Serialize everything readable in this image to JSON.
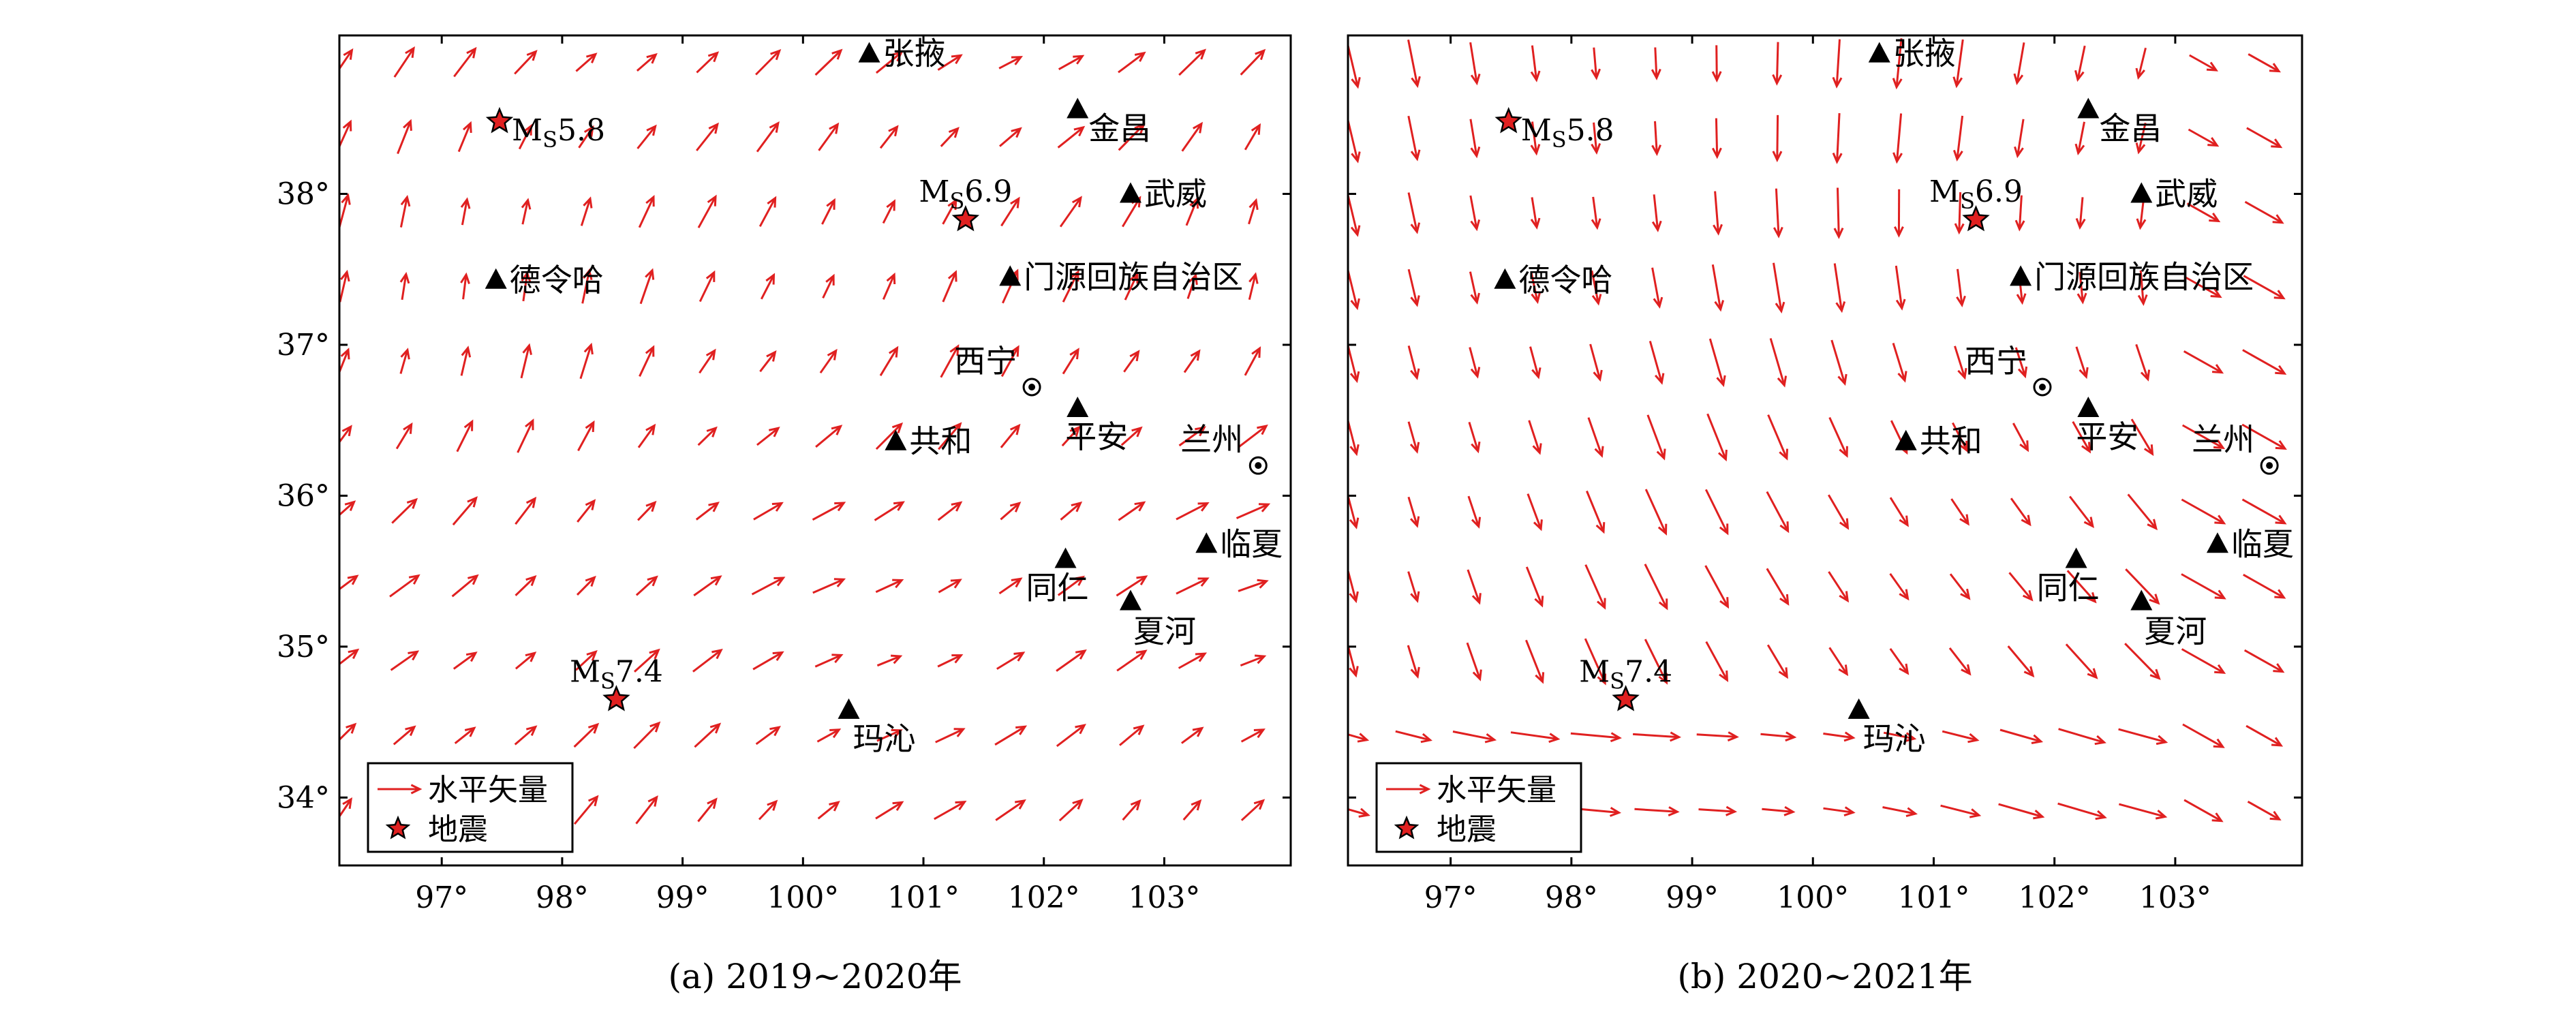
{
  "colors": {
    "vector": "#e02020",
    "star_fill": "#e02020",
    "star_stroke": "#000000",
    "station": "#000000",
    "frame": "#000000"
  },
  "panels": [
    {
      "id": "a",
      "caption": "(a) 2019~2020年",
      "flow": "northeast",
      "x_ticks": [
        {
          "lon": 97,
          "label": "97°"
        },
        {
          "lon": 98,
          "label": "98°"
        },
        {
          "lon": 99,
          "label": "99°"
        },
        {
          "lon": 100,
          "label": "100°"
        },
        {
          "lon": 101,
          "label": "101°"
        },
        {
          "lon": 102,
          "label": "102°"
        },
        {
          "lon": 103,
          "label": "103°"
        }
      ],
      "y_ticks": [
        {
          "lat": 34,
          "label": "34°"
        },
        {
          "lat": 35,
          "label": "35°"
        },
        {
          "lat": 36,
          "label": "36°"
        },
        {
          "lat": 37,
          "label": "37°"
        },
        {
          "lat": 38,
          "label": "38°"
        }
      ]
    },
    {
      "id": "b",
      "caption": "(b) 2020~2021年",
      "flow": "south",
      "x_ticks": [
        {
          "lon": 97,
          "label": "97°"
        },
        {
          "lon": 98,
          "label": "98°"
        },
        {
          "lon": 99,
          "label": "99°"
        },
        {
          "lon": 100,
          "label": "100°"
        },
        {
          "lon": 101,
          "label": "101°"
        },
        {
          "lon": 102,
          "label": "102°"
        },
        {
          "lon": 103,
          "label": "103°"
        }
      ],
      "y_ticks": [
        {
          "lat": 34,
          "label": ""
        },
        {
          "lat": 35,
          "label": ""
        },
        {
          "lat": 36,
          "label": ""
        },
        {
          "lat": 37,
          "label": ""
        },
        {
          "lat": 38,
          "label": ""
        }
      ]
    }
  ],
  "map_extent": {
    "lon": [
      96.15,
      104.05
    ],
    "lat": [
      33.55,
      39.05
    ]
  },
  "stations": [
    {
      "name": "张掖",
      "lon": 100.55,
      "lat": 38.93
    },
    {
      "name": "金昌",
      "lon": 102.28,
      "lat": 38.56
    },
    {
      "name": "武威",
      "lon": 102.72,
      "lat": 38.0
    },
    {
      "name": "德令哈",
      "lon": 97.45,
      "lat": 37.43
    },
    {
      "name": "门源回族自治区",
      "lon": 101.72,
      "lat": 37.45
    },
    {
      "name": "平安",
      "lon": 102.28,
      "lat": 36.58
    },
    {
      "name": "共和",
      "lon": 100.77,
      "lat": 36.36
    },
    {
      "name": "临夏",
      "lon": 103.35,
      "lat": 35.68
    },
    {
      "name": "同仁",
      "lon": 102.18,
      "lat": 35.58
    },
    {
      "name": "夏河",
      "lon": 102.72,
      "lat": 35.3
    },
    {
      "name": "玛沁",
      "lon": 100.38,
      "lat": 34.58
    }
  ],
  "cities": [
    {
      "name": "西宁",
      "lon": 101.9,
      "lat": 36.72
    },
    {
      "name": "兰州",
      "lon": 103.78,
      "lat": 36.2
    }
  ],
  "earthquakes": [
    {
      "label_prefix": "M",
      "label_sub": "S",
      "magnitude": "5.8",
      "lon": 97.48,
      "lat": 38.48
    },
    {
      "label_prefix": "M",
      "label_sub": "S",
      "magnitude": "6.9",
      "lon": 101.35,
      "lat": 37.83
    },
    {
      "label_prefix": "M",
      "label_sub": "S",
      "magnitude": "7.4",
      "lon": 98.45,
      "lat": 34.65
    }
  ],
  "legend": {
    "vector_label": "水平矢量",
    "quake_label": "地震"
  }
}
